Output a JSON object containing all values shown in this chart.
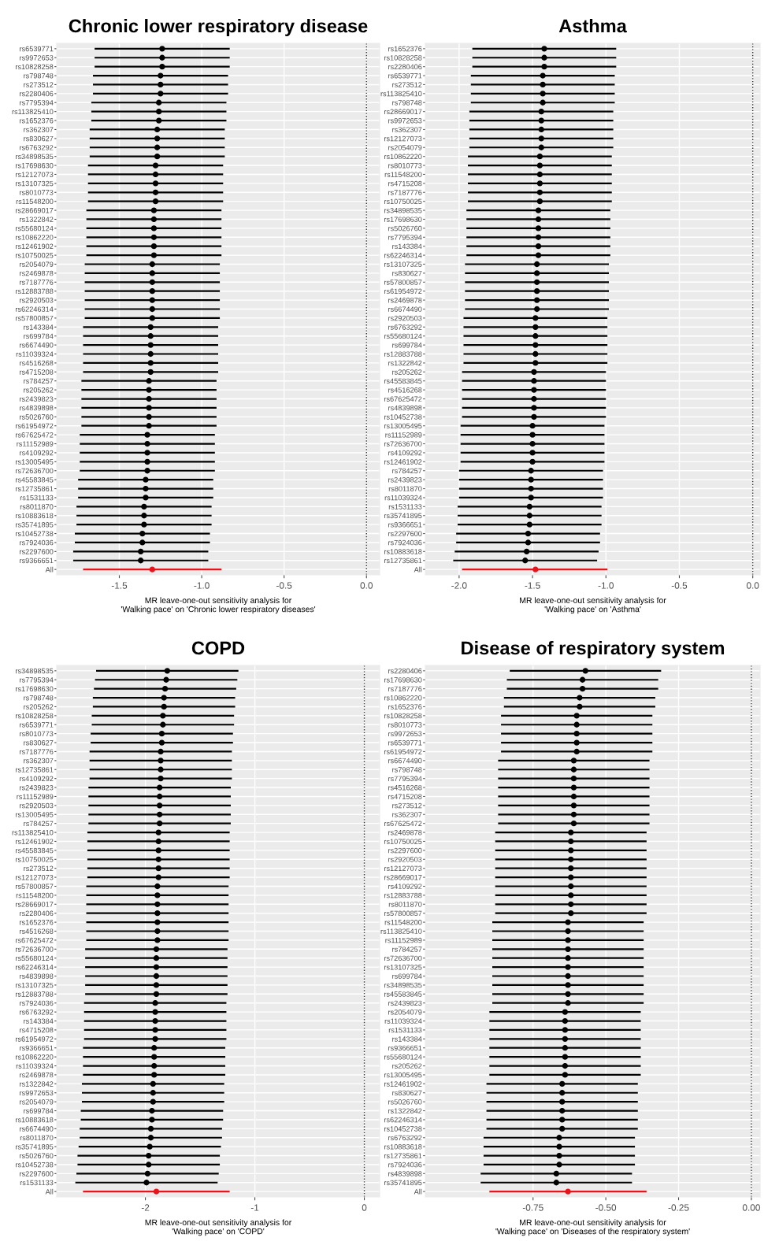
{
  "chart_data": [
    {
      "type": "scatter",
      "orientation": "horizontal",
      "title": "Chronic lower respiratory disease",
      "xlabel": "MR leave-one-out sensitivity analysis for\n'Walking pace' on 'Chronic lower respiratory diseases'",
      "categories": [
        "rs6539771",
        "rs9972653",
        "rs10828258",
        "rs798748",
        "rs273512",
        "rs2280406",
        "rs7795394",
        "rs113825410",
        "rs1652376",
        "rs362307",
        "rs830627",
        "rs6763292",
        "rs34898535",
        "rs17698630",
        "rs12127073",
        "rs13107325",
        "rs8010773",
        "rs11548200",
        "rs28669017",
        "rs1322842",
        "rs55680124",
        "rs10862220",
        "rs12461902",
        "rs10750025",
        "rs2054079",
        "rs2469878",
        "rs7187776",
        "rs12883788",
        "rs2920503",
        "rs62246314",
        "rs57800857",
        "rs143384",
        "rs699784",
        "rs6674490",
        "rs11039324",
        "rs4516268",
        "rs4715208",
        "rs784257",
        "rs205262",
        "rs2439823",
        "rs4839898",
        "rs5026760",
        "rs61954972",
        "rs67625472",
        "rs11152989",
        "rs4109292",
        "rs13005495",
        "rs72636700",
        "rs45583845",
        "rs12735861",
        "rs1531133",
        "rs8011870",
        "rs10883618",
        "rs35741895",
        "rs10452738",
        "rs7924036",
        "rs2297600",
        "rs9366651",
        "All"
      ],
      "values": [
        -1.24,
        -1.24,
        -1.24,
        -1.25,
        -1.25,
        -1.25,
        -1.26,
        -1.26,
        -1.26,
        -1.27,
        -1.27,
        -1.27,
        -1.27,
        -1.28,
        -1.28,
        -1.28,
        -1.28,
        -1.28,
        -1.29,
        -1.29,
        -1.29,
        -1.29,
        -1.29,
        -1.29,
        -1.3,
        -1.3,
        -1.3,
        -1.3,
        -1.3,
        -1.3,
        -1.3,
        -1.31,
        -1.31,
        -1.31,
        -1.31,
        -1.31,
        -1.31,
        -1.32,
        -1.32,
        -1.32,
        -1.32,
        -1.32,
        -1.32,
        -1.33,
        -1.33,
        -1.33,
        -1.33,
        -1.33,
        -1.34,
        -1.34,
        -1.34,
        -1.35,
        -1.35,
        -1.35,
        -1.36,
        -1.36,
        -1.37,
        -1.37,
        -1.3
      ],
      "errors": [
        0.41,
        0.41,
        0.41,
        0.41,
        0.41,
        0.41,
        0.41,
        0.41,
        0.41,
        0.41,
        0.41,
        0.41,
        0.41,
        0.41,
        0.41,
        0.41,
        0.41,
        0.41,
        0.41,
        0.41,
        0.41,
        0.41,
        0.41,
        0.41,
        0.41,
        0.41,
        0.41,
        0.41,
        0.41,
        0.41,
        0.41,
        0.41,
        0.41,
        0.41,
        0.41,
        0.41,
        0.41,
        0.41,
        0.41,
        0.41,
        0.41,
        0.41,
        0.41,
        0.41,
        0.41,
        0.41,
        0.41,
        0.41,
        0.41,
        0.41,
        0.41,
        0.41,
        0.41,
        0.41,
        0.41,
        0.41,
        0.41,
        0.41,
        [
          -1.72,
          -0.88
        ]
      ],
      "colors": [
        "#000000",
        "#000000",
        "#000000",
        "#000000",
        "#000000",
        "#000000",
        "#000000",
        "#000000",
        "#000000",
        "#000000",
        "#000000",
        "#000000",
        "#000000",
        "#000000",
        "#000000",
        "#000000",
        "#000000",
        "#000000",
        "#000000",
        "#000000",
        "#000000",
        "#000000",
        "#000000",
        "#000000",
        "#000000",
        "#000000",
        "#000000",
        "#000000",
        "#000000",
        "#000000",
        "#000000",
        "#000000",
        "#000000",
        "#000000",
        "#000000",
        "#000000",
        "#000000",
        "#000000",
        "#000000",
        "#000000",
        "#000000",
        "#000000",
        "#000000",
        "#000000",
        "#000000",
        "#000000",
        "#000000",
        "#000000",
        "#000000",
        "#000000",
        "#000000",
        "#000000",
        "#000000",
        "#000000",
        "#000000",
        "#000000",
        "#000000",
        "#000000",
        "#e8141c"
      ],
      "xlim": [
        -1.88,
        0.08
      ],
      "xticks": [
        {
          "value": -1.5,
          "label": "-1.5"
        },
        {
          "value": -1,
          "label": "-1.0"
        },
        {
          "value": -0.5,
          "label": "-0.5"
        },
        {
          "value": 0,
          "label": "0.0"
        }
      ],
      "grid": true,
      "marker": "circle",
      "ref_lines": [
        {
          "axis": "x",
          "value": 0,
          "line_style": "dotted",
          "color": "#333333"
        }
      ]
    },
    {
      "type": "scatter",
      "orientation": "horizontal",
      "title": "Asthma",
      "xlabel": "MR leave-one-out sensitivity analysis for\n'Walking pace' on 'Asthma'",
      "categories": [
        "rs1652376",
        "rs10828258",
        "rs2280406",
        "rs6539771",
        "rs273512",
        "rs113825410",
        "rs798748",
        "rs28669017",
        "rs9972653",
        "rs362307",
        "rs12127073",
        "rs2054079",
        "rs10862220",
        "rs8010773",
        "rs11548200",
        "rs4715208",
        "rs7187776",
        "rs10750025",
        "rs34898535",
        "rs17698630",
        "rs5026760",
        "rs7795394",
        "rs143384",
        "rs62246314",
        "rs13107325",
        "rs830627",
        "rs57800857",
        "rs61954972",
        "rs2469878",
        "rs6674490",
        "rs2920503",
        "rs6763292",
        "rs55680124",
        "rs699784",
        "rs12883788",
        "rs1322842",
        "rs205262",
        "rs45583845",
        "rs4516268",
        "rs67625472",
        "rs4839898",
        "rs10452738",
        "rs13005495",
        "rs11152989",
        "rs72636700",
        "rs4109292",
        "rs12461902",
        "rs784257",
        "rs2439823",
        "rs8011870",
        "rs11039324",
        "rs1531133",
        "rs35741895",
        "rs9366651",
        "rs2297600",
        "rs7924036",
        "rs10883618",
        "rs12735861",
        "All"
      ],
      "values": [
        -1.42,
        -1.42,
        -1.42,
        -1.43,
        -1.43,
        -1.43,
        -1.43,
        -1.44,
        -1.44,
        -1.44,
        -1.44,
        -1.44,
        -1.45,
        -1.45,
        -1.45,
        -1.45,
        -1.45,
        -1.45,
        -1.46,
        -1.46,
        -1.46,
        -1.46,
        -1.46,
        -1.46,
        -1.47,
        -1.47,
        -1.47,
        -1.47,
        -1.47,
        -1.47,
        -1.48,
        -1.48,
        -1.48,
        -1.48,
        -1.48,
        -1.48,
        -1.49,
        -1.49,
        -1.49,
        -1.49,
        -1.49,
        -1.49,
        -1.5,
        -1.5,
        -1.5,
        -1.5,
        -1.5,
        -1.51,
        -1.51,
        -1.51,
        -1.51,
        -1.52,
        -1.52,
        -1.52,
        -1.53,
        -1.53,
        -1.54,
        -1.55,
        -1.48
      ],
      "errors": [
        0.49,
        0.49,
        0.49,
        0.49,
        0.49,
        0.49,
        0.49,
        0.49,
        0.49,
        0.49,
        0.49,
        0.49,
        0.49,
        0.49,
        0.49,
        0.49,
        0.49,
        0.49,
        0.49,
        0.49,
        0.49,
        0.49,
        0.49,
        0.49,
        0.49,
        0.49,
        0.49,
        0.49,
        0.49,
        0.49,
        0.49,
        0.49,
        0.49,
        0.49,
        0.49,
        0.49,
        0.49,
        0.49,
        0.49,
        0.49,
        0.49,
        0.49,
        0.49,
        0.49,
        0.49,
        0.49,
        0.49,
        0.49,
        0.49,
        0.49,
        0.49,
        0.49,
        0.49,
        0.49,
        0.49,
        0.49,
        0.49,
        0.49,
        [
          -1.98,
          -0.99
        ]
      ],
      "colors": [
        "#000000",
        "#000000",
        "#000000",
        "#000000",
        "#000000",
        "#000000",
        "#000000",
        "#000000",
        "#000000",
        "#000000",
        "#000000",
        "#000000",
        "#000000",
        "#000000",
        "#000000",
        "#000000",
        "#000000",
        "#000000",
        "#000000",
        "#000000",
        "#000000",
        "#000000",
        "#000000",
        "#000000",
        "#000000",
        "#000000",
        "#000000",
        "#000000",
        "#000000",
        "#000000",
        "#000000",
        "#000000",
        "#000000",
        "#000000",
        "#000000",
        "#000000",
        "#000000",
        "#000000",
        "#000000",
        "#000000",
        "#000000",
        "#000000",
        "#000000",
        "#000000",
        "#000000",
        "#000000",
        "#000000",
        "#000000",
        "#000000",
        "#000000",
        "#000000",
        "#000000",
        "#000000",
        "#000000",
        "#000000",
        "#000000",
        "#000000",
        "#000000",
        "#e8141c"
      ],
      "xlim": [
        -2.23,
        0.05
      ],
      "xticks": [
        {
          "value": -2,
          "label": "-2.0"
        },
        {
          "value": -1.5,
          "label": "-1.5"
        },
        {
          "value": -1,
          "label": "-1.0"
        },
        {
          "value": -0.5,
          "label": "-0.5"
        },
        {
          "value": 0,
          "label": "0.0"
        }
      ],
      "grid": true,
      "marker": "circle",
      "ref_lines": [
        {
          "axis": "x",
          "value": 0,
          "line_style": "dotted",
          "color": "#333333"
        }
      ]
    },
    {
      "type": "scatter",
      "orientation": "horizontal",
      "title": "COPD",
      "xlabel": "MR leave-one-out sensitivity analysis for\n'Walking pace' on 'COPD'",
      "categories": [
        "rs34898535",
        "rs7795394",
        "rs17698630",
        "rs798748",
        "rs205262",
        "rs10828258",
        "rs6539771",
        "rs8010773",
        "rs830627",
        "rs7187776",
        "rs362307",
        "rs12735861",
        "rs4109292",
        "rs2439823",
        "rs11152989",
        "rs2920503",
        "rs13005495",
        "rs784257",
        "rs113825410",
        "rs12461902",
        "rs45583845",
        "rs10750025",
        "rs273512",
        "rs12127073",
        "rs57800857",
        "rs11548200",
        "rs28669017",
        "rs2280406",
        "rs1652376",
        "rs4516268",
        "rs67625472",
        "rs72636700",
        "rs55680124",
        "rs62246314",
        "rs4839898",
        "rs13107325",
        "rs12883788",
        "rs7924036",
        "rs6763292",
        "rs143384",
        "rs4715208",
        "rs61954972",
        "rs9366651",
        "rs10862220",
        "rs11039324",
        "rs2469878",
        "rs1322842",
        "rs9972653",
        "rs2054079",
        "rs699784",
        "rs10883618",
        "rs6674490",
        "rs8011870",
        "rs35741895",
        "rs5026760",
        "rs10452738",
        "rs2297600",
        "rs1531133",
        "All"
      ],
      "values": [
        -1.8,
        -1.81,
        -1.82,
        -1.83,
        -1.83,
        -1.84,
        -1.84,
        -1.85,
        -1.85,
        -1.86,
        -1.86,
        -1.86,
        -1.86,
        -1.87,
        -1.87,
        -1.87,
        -1.87,
        -1.87,
        -1.88,
        -1.88,
        -1.88,
        -1.88,
        -1.88,
        -1.88,
        -1.89,
        -1.89,
        -1.89,
        -1.89,
        -1.89,
        -1.89,
        -1.89,
        -1.9,
        -1.9,
        -1.9,
        -1.9,
        -1.9,
        -1.9,
        -1.91,
        -1.91,
        -1.91,
        -1.91,
        -1.91,
        -1.92,
        -1.92,
        -1.92,
        -1.92,
        -1.93,
        -1.93,
        -1.93,
        -1.94,
        -1.94,
        -1.95,
        -1.95,
        -1.96,
        -1.97,
        -1.97,
        -1.98,
        -1.99,
        -1.9
      ],
      "errors": [
        0.65,
        0.65,
        0.65,
        0.65,
        0.65,
        0.65,
        0.65,
        0.65,
        0.65,
        0.65,
        0.65,
        0.65,
        0.65,
        0.65,
        0.65,
        0.65,
        0.65,
        0.65,
        0.65,
        0.65,
        0.65,
        0.65,
        0.65,
        0.65,
        0.65,
        0.65,
        0.65,
        0.65,
        0.65,
        0.65,
        0.65,
        0.65,
        0.65,
        0.65,
        0.65,
        0.65,
        0.65,
        0.65,
        0.65,
        0.65,
        0.65,
        0.65,
        0.65,
        0.65,
        0.65,
        0.65,
        0.65,
        0.65,
        0.65,
        0.65,
        0.65,
        0.65,
        0.65,
        0.65,
        0.65,
        0.65,
        0.65,
        0.65,
        [
          -2.57,
          -1.23
        ]
      ],
      "colors": [
        "#000000",
        "#000000",
        "#000000",
        "#000000",
        "#000000",
        "#000000",
        "#000000",
        "#000000",
        "#000000",
        "#000000",
        "#000000",
        "#000000",
        "#000000",
        "#000000",
        "#000000",
        "#000000",
        "#000000",
        "#000000",
        "#000000",
        "#000000",
        "#000000",
        "#000000",
        "#000000",
        "#000000",
        "#000000",
        "#000000",
        "#000000",
        "#000000",
        "#000000",
        "#000000",
        "#000000",
        "#000000",
        "#000000",
        "#000000",
        "#000000",
        "#000000",
        "#000000",
        "#000000",
        "#000000",
        "#000000",
        "#000000",
        "#000000",
        "#000000",
        "#000000",
        "#000000",
        "#000000",
        "#000000",
        "#000000",
        "#000000",
        "#000000",
        "#000000",
        "#000000",
        "#000000",
        "#000000",
        "#000000",
        "#000000",
        "#000000",
        "#000000",
        "#e8141c"
      ],
      "xlim": [
        -2.81,
        0.14
      ],
      "xticks": [
        -2,
        -1,
        0
      ],
      "grid": true,
      "marker": "circle",
      "ref_lines": [
        {
          "axis": "x",
          "value": 0,
          "line_style": "dotted",
          "color": "#333333"
        }
      ]
    },
    {
      "type": "scatter",
      "orientation": "horizontal",
      "title": "Disease of respiratory system",
      "xlabel": "MR leave-one-out sensitivity analysis for\n'Walking pace' on 'Diseases of the respiratory system'",
      "categories": [
        "rs2280406",
        "rs17698630",
        "rs7187776",
        "rs10862220",
        "rs1652376",
        "rs10828258",
        "rs8010773",
        "rs9972653",
        "rs6539771",
        "rs61954972",
        "rs6674490",
        "rs798748",
        "rs7795394",
        "rs4516268",
        "rs4715208",
        "rs273512",
        "rs362307",
        "rs67625472",
        "rs2469878",
        "rs10750025",
        "rs2297600",
        "rs2920503",
        "rs12127073",
        "rs28669017",
        "rs4109292",
        "rs12883788",
        "rs8011870",
        "rs57800857",
        "rs11548200",
        "rs113825410",
        "rs11152989",
        "rs784257",
        "rs72636700",
        "rs13107325",
        "rs699784",
        "rs34898535",
        "rs45583845",
        "rs2439823",
        "rs2054079",
        "rs11039324",
        "rs1531133",
        "rs143384",
        "rs9366651",
        "rs55680124",
        "rs205262",
        "rs13005495",
        "rs12461902",
        "rs830627",
        "rs5026760",
        "rs1322842",
        "rs62246314",
        "rs10452738",
        "rs6763292",
        "rs10883618",
        "rs12735861",
        "rs7924036",
        "rs4839898",
        "rs35741895",
        "All"
      ],
      "values": [
        -0.57,
        -0.58,
        -0.58,
        -0.59,
        -0.59,
        -0.6,
        -0.6,
        -0.6,
        -0.6,
        -0.6,
        -0.61,
        -0.61,
        -0.61,
        -0.61,
        -0.61,
        -0.61,
        -0.61,
        -0.61,
        -0.62,
        -0.62,
        -0.62,
        -0.62,
        -0.62,
        -0.62,
        -0.62,
        -0.62,
        -0.62,
        -0.62,
        -0.63,
        -0.63,
        -0.63,
        -0.63,
        -0.63,
        -0.63,
        -0.63,
        -0.63,
        -0.63,
        -0.63,
        -0.64,
        -0.64,
        -0.64,
        -0.64,
        -0.64,
        -0.64,
        -0.64,
        -0.64,
        -0.65,
        -0.65,
        -0.65,
        -0.65,
        -0.65,
        -0.65,
        -0.66,
        -0.66,
        -0.66,
        -0.66,
        -0.67,
        -0.67,
        -0.63
      ],
      "errors": [
        0.26,
        0.26,
        0.26,
        0.26,
        0.26,
        0.26,
        0.26,
        0.26,
        0.26,
        0.26,
        0.26,
        0.26,
        0.26,
        0.26,
        0.26,
        0.26,
        0.26,
        0.26,
        0.26,
        0.26,
        0.26,
        0.26,
        0.26,
        0.26,
        0.26,
        0.26,
        0.26,
        0.26,
        0.26,
        0.26,
        0.26,
        0.26,
        0.26,
        0.26,
        0.26,
        0.26,
        0.26,
        0.26,
        0.26,
        0.26,
        0.26,
        0.26,
        0.26,
        0.26,
        0.26,
        0.26,
        0.26,
        0.26,
        0.26,
        0.26,
        0.26,
        0.26,
        0.26,
        0.26,
        0.26,
        0.26,
        0.26,
        0.26,
        [
          -0.9,
          -0.36
        ]
      ],
      "colors": [
        "#000000",
        "#000000",
        "#000000",
        "#000000",
        "#000000",
        "#000000",
        "#000000",
        "#000000",
        "#000000",
        "#000000",
        "#000000",
        "#000000",
        "#000000",
        "#000000",
        "#000000",
        "#000000",
        "#000000",
        "#000000",
        "#000000",
        "#000000",
        "#000000",
        "#000000",
        "#000000",
        "#000000",
        "#000000",
        "#000000",
        "#000000",
        "#000000",
        "#000000",
        "#000000",
        "#000000",
        "#000000",
        "#000000",
        "#000000",
        "#000000",
        "#000000",
        "#000000",
        "#000000",
        "#000000",
        "#000000",
        "#000000",
        "#000000",
        "#000000",
        "#000000",
        "#000000",
        "#000000",
        "#000000",
        "#000000",
        "#000000",
        "#000000",
        "#000000",
        "#000000",
        "#000000",
        "#000000",
        "#000000",
        "#000000",
        "#000000",
        "#000000",
        "#e8141c"
      ],
      "xlim": [
        -1.12,
        0.03
      ],
      "xticks": [
        {
          "value": -0.75,
          "label": "-0.75"
        },
        {
          "value": -0.5,
          "label": "-0.50"
        },
        {
          "value": -0.25,
          "label": "-0.25"
        },
        {
          "value": 0,
          "label": "0.00"
        }
      ],
      "grid": true,
      "marker": "circle",
      "ref_lines": [
        {
          "axis": "x",
          "value": 0,
          "line_style": "dotted",
          "color": "#333333"
        }
      ]
    }
  ]
}
